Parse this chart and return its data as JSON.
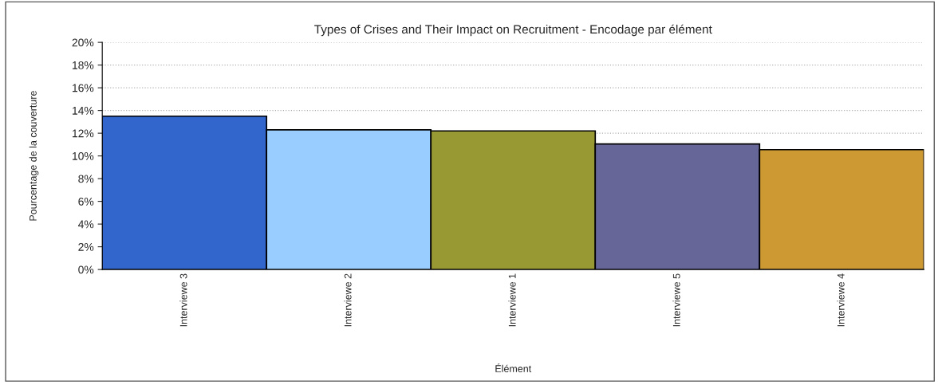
{
  "chart_data": {
    "type": "bar",
    "title": "Types of Crises and Their Impact on Recruitment - Encodage par élément",
    "xlabel": "Élément",
    "ylabel": "Pourcentage de la couverture",
    "categories": [
      "Interviewe 3",
      "Interviewe 2",
      "Interviewe 1",
      "Interviewe 5",
      "Interviewe 4"
    ],
    "values": [
      13.5,
      12.3,
      12.2,
      11.05,
      10.55
    ],
    "colors": [
      "#3366cc",
      "#99ccff",
      "#999933",
      "#666699",
      "#cc9933"
    ],
    "ylim": [
      0,
      20
    ],
    "yticks": [
      {
        "value": 0,
        "label": "0%"
      },
      {
        "value": 2,
        "label": "2%"
      },
      {
        "value": 4,
        "label": "4%"
      },
      {
        "value": 6,
        "label": "6%"
      },
      {
        "value": 8,
        "label": "8%"
      },
      {
        "value": 10,
        "label": "10%"
      },
      {
        "value": 12,
        "label": "12%"
      },
      {
        "value": 14,
        "label": "14%"
      },
      {
        "value": 16,
        "label": "16%"
      },
      {
        "value": 18,
        "label": "18%"
      },
      {
        "value": 20,
        "label": "20%"
      }
    ],
    "grid": "y",
    "legend": false
  }
}
